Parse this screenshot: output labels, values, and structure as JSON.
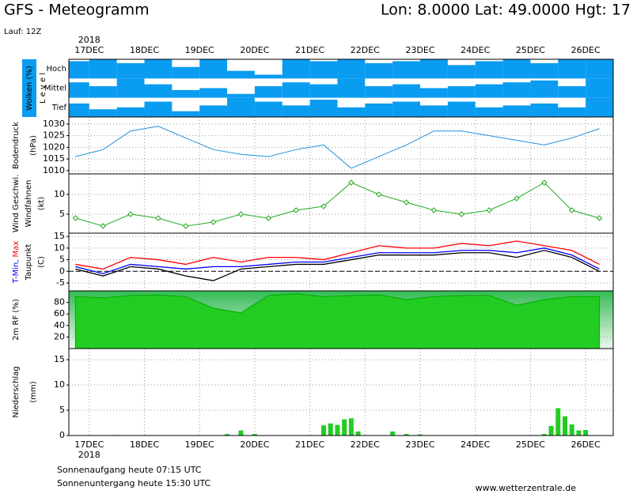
{
  "header": {
    "title": "GFS - Meteogramm",
    "location": "Lon: 8.0000 Lat: 49.0000 Hgt: 17",
    "run": "Lauf: 12Z"
  },
  "footer": {
    "sunrise": "Sonnenaufgang heute 07:15 UTC",
    "sunset": "Sonnenuntergang heute 15:30 UTC",
    "source": "www.wetterzentrale.de"
  },
  "chart_data": [
    {
      "type": "cloud",
      "ylabel": "Wolken (%)",
      "level_label": "L e v e l",
      "year": "2018",
      "color": "#0a9cf0",
      "grid": false,
      "xlim": [
        16.63,
        26.5
      ],
      "xticks": [
        {
          "value": 17,
          "label": "17DEC"
        },
        {
          "value": 18,
          "label": "18DEC"
        },
        {
          "value": 19,
          "label": "19DEC"
        },
        {
          "value": 20,
          "label": "20DEC"
        },
        {
          "value": 21,
          "label": "21DEC"
        },
        {
          "value": 22,
          "label": "22DEC"
        },
        {
          "value": 23,
          "label": "23DEC"
        },
        {
          "value": 24,
          "label": "24DEC"
        },
        {
          "value": 25,
          "label": "25DEC"
        },
        {
          "value": 26,
          "label": "26DEC"
        }
      ],
      "ylim": [
        0,
        100
      ],
      "x": [
        16.75,
        17.25,
        17.75,
        18.25,
        18.75,
        19.25,
        19.75,
        20.25,
        20.75,
        21.25,
        21.75,
        22.25,
        22.75,
        23.25,
        23.75,
        24.25,
        24.75,
        25.25,
        25.75,
        26.25
      ],
      "series": [
        {
          "name": "Hoch",
          "values": [
            90,
            100,
            80,
            100,
            60,
            100,
            40,
            20,
            100,
            90,
            100,
            80,
            90,
            100,
            70,
            90,
            100,
            80,
            100,
            100
          ]
        },
        {
          "name": "Mittel",
          "values": [
            80,
            60,
            100,
            70,
            40,
            50,
            20,
            60,
            80,
            70,
            100,
            60,
            70,
            50,
            60,
            70,
            80,
            90,
            60,
            100
          ]
        },
        {
          "name": "Tief",
          "values": [
            70,
            40,
            50,
            80,
            30,
            60,
            100,
            80,
            60,
            90,
            50,
            70,
            80,
            60,
            80,
            50,
            60,
            70,
            50,
            100
          ]
        }
      ]
    },
    {
      "type": "line",
      "ylabel": "Bodendruck",
      "yunit": "(hPa)",
      "color": "#1e90dd",
      "grid": true,
      "xlim": [
        16.63,
        26.5
      ],
      "xticks": [
        {
          "value": 17,
          "label": "17DEC"
        },
        {
          "value": 18,
          "label": "18DEC"
        },
        {
          "value": 19,
          "label": "19DEC"
        },
        {
          "value": 20,
          "label": "20DEC"
        },
        {
          "value": 21,
          "label": "21DEC"
        },
        {
          "value": 22,
          "label": "22DEC"
        },
        {
          "value": 23,
          "label": "23DEC"
        },
        {
          "value": 24,
          "label": "24DEC"
        },
        {
          "value": 25,
          "label": "25DEC"
        },
        {
          "value": 26,
          "label": "26DEC"
        }
      ],
      "ylim": [
        1008.6,
        1033
      ],
      "yticks": [
        1010,
        1015,
        1020,
        1025,
        1030
      ],
      "x": [
        16.75,
        17.25,
        17.75,
        18.25,
        18.75,
        19.25,
        19.75,
        20.25,
        20.75,
        21.25,
        21.75,
        22.25,
        22.75,
        23.25,
        23.75,
        24.25,
        24.75,
        25.25,
        25.75,
        26.25
      ],
      "values": [
        1016,
        1019,
        1027,
        1029,
        1024,
        1019,
        1017,
        1016,
        1019,
        1021,
        1011,
        1016,
        1021,
        1027,
        1027,
        1025,
        1023,
        1021,
        1024,
        1028
      ]
    },
    {
      "type": "line",
      "ylabel": "Wind Geschwi.",
      "ylabel2": "Windfahnen",
      "yunit": "(kt)",
      "color": "#22aa22",
      "markers": true,
      "grid": true,
      "xlim": [
        16.63,
        26.5
      ],
      "xticks": [
        {
          "value": 17,
          "label": "17DEC"
        },
        {
          "value": 18,
          "label": "18DEC"
        },
        {
          "value": 19,
          "label": "19DEC"
        },
        {
          "value": 20,
          "label": "20DEC"
        },
        {
          "value": 21,
          "label": "21DEC"
        },
        {
          "value": 22,
          "label": "22DEC"
        },
        {
          "value": 23,
          "label": "23DEC"
        },
        {
          "value": 24,
          "label": "24DEC"
        },
        {
          "value": 25,
          "label": "25DEC"
        },
        {
          "value": 26,
          "label": "26DEC"
        }
      ],
      "ylim": [
        0.2,
        15.2
      ],
      "yticks": [
        5,
        10
      ],
      "x": [
        16.75,
        17.25,
        17.75,
        18.25,
        18.75,
        19.25,
        19.75,
        20.25,
        20.75,
        21.25,
        21.75,
        22.25,
        22.75,
        23.25,
        23.75,
        24.25,
        24.75,
        25.25,
        25.75,
        26.25
      ],
      "values": [
        4,
        2,
        5,
        4,
        2,
        3,
        5,
        4,
        6,
        7,
        13,
        10,
        8,
        6,
        5,
        6,
        9,
        13,
        6,
        4
      ]
    },
    {
      "type": "line",
      "yunit": "(C)",
      "zero_line": true,
      "grid": true,
      "xlim": [
        16.63,
        26.5
      ],
      "xticks": [
        {
          "value": 17,
          "label": "17DEC"
        },
        {
          "value": 18,
          "label": "18DEC"
        },
        {
          "value": 19,
          "label": "19DEC"
        },
        {
          "value": 20,
          "label": "20DEC"
        },
        {
          "value": 21,
          "label": "21DEC"
        },
        {
          "value": 22,
          "label": "22DEC"
        },
        {
          "value": 23,
          "label": "23DEC"
        },
        {
          "value": 24,
          "label": "24DEC"
        },
        {
          "value": 25,
          "label": "25DEC"
        },
        {
          "value": 26,
          "label": "26DEC"
        }
      ],
      "ylim": [
        -8.4,
        16.4
      ],
      "yticks": [
        -5,
        0,
        5,
        10,
        15
      ],
      "x": [
        16.75,
        17.25,
        17.75,
        18.25,
        18.75,
        19.25,
        19.75,
        20.25,
        20.75,
        21.25,
        21.75,
        22.25,
        22.75,
        23.25,
        23.75,
        24.25,
        24.75,
        25.25,
        25.75,
        26.25
      ],
      "series": [
        {
          "name": "T-Min,",
          "color": "#0000ff",
          "values": [
            2,
            -1,
            3,
            2,
            1,
            2,
            2,
            3,
            4,
            4,
            6,
            8,
            8,
            8,
            9,
            9,
            8,
            10,
            7,
            1
          ]
        },
        {
          "name": "Max",
          "color": "#ff0000",
          "values": [
            3,
            1,
            6,
            5,
            3,
            6,
            4,
            6,
            6,
            5,
            8,
            11,
            10,
            10,
            12,
            11,
            13,
            11,
            9,
            3
          ]
        },
        {
          "name": "Taupunkt",
          "color": "#000000",
          "values": [
            1,
            -2,
            2,
            1,
            -2,
            -4,
            1,
            2,
            3,
            3,
            5,
            7,
            7,
            7,
            8,
            8,
            6,
            9,
            6,
            0
          ]
        }
      ]
    },
    {
      "type": "area",
      "ylabel": "2m RF (%)",
      "color": "#22cc22",
      "grid": true,
      "xlim": [
        16.63,
        26.5
      ],
      "xticks": [
        {
          "value": 17,
          "label": "17DEC"
        },
        {
          "value": 18,
          "label": "18DEC"
        },
        {
          "value": 19,
          "label": "19DEC"
        },
        {
          "value": 20,
          "label": "20DEC"
        },
        {
          "value": 21,
          "label": "21DEC"
        },
        {
          "value": 22,
          "label": "22DEC"
        },
        {
          "value": 23,
          "label": "23DEC"
        },
        {
          "value": 24,
          "label": "24DEC"
        },
        {
          "value": 25,
          "label": "25DEC"
        },
        {
          "value": 26,
          "label": "26DEC"
        }
      ],
      "ylim": [
        0,
        100
      ],
      "yticks": [
        20,
        40,
        60,
        80
      ],
      "x": [
        16.75,
        17.25,
        17.75,
        18.25,
        18.75,
        19.25,
        19.75,
        20.25,
        20.75,
        21.25,
        21.75,
        22.25,
        22.75,
        23.25,
        23.75,
        24.25,
        24.75,
        25.25,
        25.75,
        26.25
      ],
      "values": [
        90,
        88,
        92,
        93,
        90,
        70,
        62,
        92,
        95,
        90,
        92,
        93,
        85,
        90,
        92,
        92,
        75,
        85,
        90,
        90
      ]
    },
    {
      "type": "bar",
      "ylabel": "Niederschlag",
      "yunit": "(mm)",
      "year": "2018",
      "color": "#22cc22",
      "grid": true,
      "xlim": [
        16.63,
        26.5
      ],
      "xticks": [
        {
          "value": 17,
          "label": "17DEC"
        },
        {
          "value": 18,
          "label": "18DEC"
        },
        {
          "value": 19,
          "label": "19DEC"
        },
        {
          "value": 20,
          "label": "20DEC"
        },
        {
          "value": 21,
          "label": "21DEC"
        },
        {
          "value": 22,
          "label": "22DEC"
        },
        {
          "value": 23,
          "label": "23DEC"
        },
        {
          "value": 24,
          "label": "24DEC"
        },
        {
          "value": 25,
          "label": "25DEC"
        },
        {
          "value": 26,
          "label": "26DEC"
        }
      ],
      "ylim": [
        0,
        17.2
      ],
      "yticks": [
        0,
        5,
        10,
        15
      ],
      "x": [
        17.5,
        19.5,
        19.75,
        20.0,
        21.25,
        21.375,
        21.5,
        21.625,
        21.75,
        21.875,
        22.5,
        22.75,
        23.0,
        25.25,
        25.375,
        25.5,
        25.625,
        25.75,
        25.875,
        26.0
      ],
      "values": [
        0.1,
        0.3,
        1.0,
        0.3,
        2.0,
        2.4,
        2.1,
        3.2,
        3.4,
        0.8,
        0.8,
        0.3,
        0.2,
        0.3,
        1.9,
        5.4,
        3.8,
        2.2,
        1.0,
        1.1
      ]
    }
  ]
}
